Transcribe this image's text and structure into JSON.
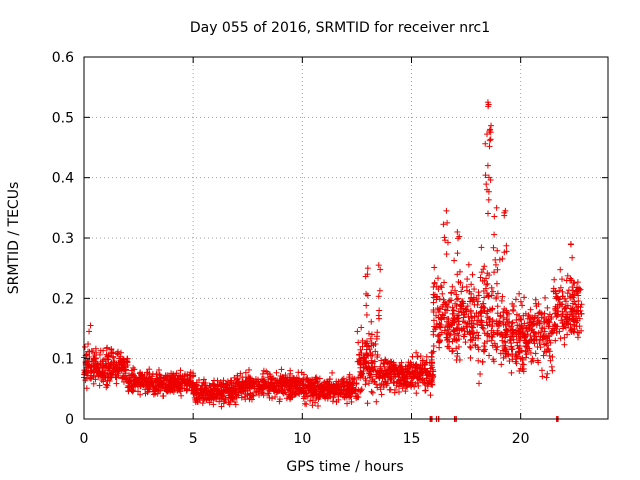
{
  "chart_data": {
    "type": "scatter",
    "title": "Day 055 of 2016, SRMTID for receiver nrc1",
    "xlabel": "GPS time / hours",
    "ylabel": "SRMTID / TECUs",
    "xlim": [
      0,
      24
    ],
    "ylim": [
      0,
      0.6
    ],
    "xticks": [
      0,
      5,
      10,
      15,
      20
    ],
    "yticks": [
      0,
      0.1,
      0.2,
      0.3,
      0.4,
      0.5,
      0.6
    ],
    "xtick_labels": [
      "0",
      "5",
      "10",
      "15",
      "20"
    ],
    "ytick_labels": [
      "0",
      "0.1",
      "0.2",
      "0.3",
      "0.4",
      "0.5",
      "0.6"
    ],
    "grid": true,
    "marker": "+",
    "color": "#ee0000",
    "series": [
      {
        "name": "SRMTID",
        "segments": [
          {
            "x_start": 0.0,
            "x_end": 2.0,
            "y_median": 0.085,
            "y_spread": 0.03
          },
          {
            "x_start": 2.0,
            "x_end": 5.0,
            "y_median": 0.06,
            "y_spread": 0.02
          },
          {
            "x_start": 5.0,
            "x_end": 7.0,
            "y_median": 0.045,
            "y_spread": 0.02
          },
          {
            "x_start": 7.0,
            "x_end": 10.0,
            "y_median": 0.055,
            "y_spread": 0.022
          },
          {
            "x_start": 10.0,
            "x_end": 12.5,
            "y_median": 0.05,
            "y_spread": 0.022
          },
          {
            "x_start": 12.5,
            "x_end": 13.5,
            "y_median": 0.09,
            "y_spread": 0.06
          },
          {
            "x_start": 13.5,
            "x_end": 16.0,
            "y_median": 0.075,
            "y_spread": 0.03
          },
          {
            "x_start": 16.0,
            "x_end": 18.0,
            "y_median": 0.17,
            "y_spread": 0.07
          },
          {
            "x_start": 18.0,
            "x_end": 19.0,
            "y_median": 0.18,
            "y_spread": 0.09
          },
          {
            "x_start": 19.0,
            "x_end": 21.5,
            "y_median": 0.14,
            "y_spread": 0.06
          },
          {
            "x_start": 21.5,
            "x_end": 22.8,
            "y_median": 0.18,
            "y_spread": 0.05
          }
        ],
        "peaks": [
          {
            "x": 0.3,
            "y": 0.155
          },
          {
            "x": 13.0,
            "y": 0.25
          },
          {
            "x": 13.5,
            "y": 0.255
          },
          {
            "x": 16.6,
            "y": 0.345
          },
          {
            "x": 17.1,
            "y": 0.31
          },
          {
            "x": 18.5,
            "y": 0.525
          },
          {
            "x": 18.6,
            "y": 0.48
          },
          {
            "x": 18.5,
            "y": 0.42
          },
          {
            "x": 18.9,
            "y": 0.35
          },
          {
            "x": 19.3,
            "y": 0.345
          },
          {
            "x": 22.3,
            "y": 0.29
          }
        ],
        "zero_points": [
          {
            "x": 15.9,
            "y": 0.0
          },
          {
            "x": 16.2,
            "y": 0.0
          },
          {
            "x": 17.0,
            "y": 0.0
          },
          {
            "x": 21.7,
            "y": 0.0
          }
        ]
      }
    ]
  }
}
